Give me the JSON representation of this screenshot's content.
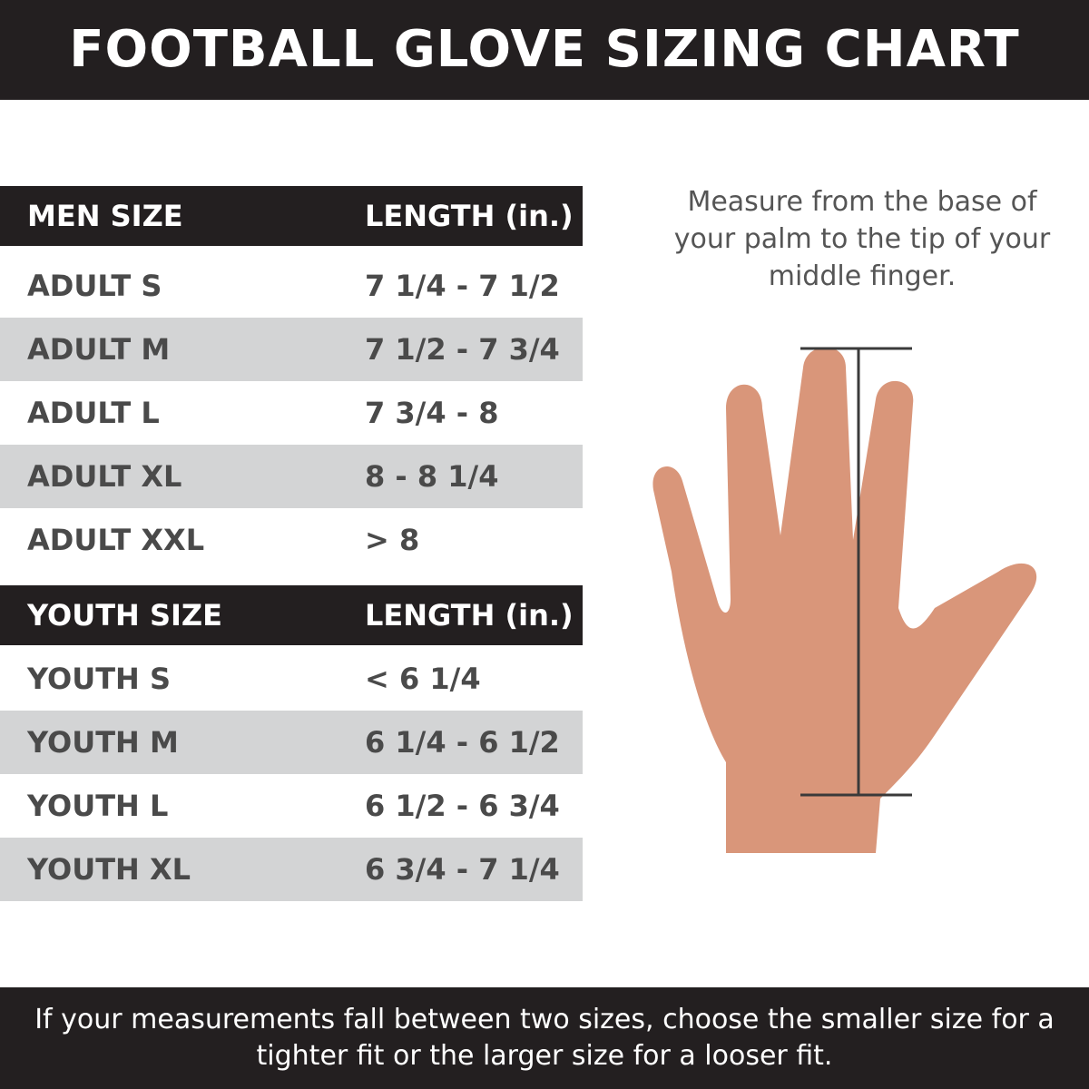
{
  "title": "FOOTBALL GLOVE SIZING CHART",
  "men": {
    "header": [
      "MEN SIZE",
      "LENGTH (in.)"
    ],
    "rows": [
      [
        "ADULT S",
        "7 1/4 - 7 1/2"
      ],
      [
        "ADULT M",
        "7 1/2 - 7 3/4"
      ],
      [
        "ADULT L",
        "7 3/4 - 8"
      ],
      [
        "ADULT XL",
        "8 - 8 1/4"
      ],
      [
        "ADULT XXL",
        "> 8"
      ]
    ]
  },
  "youth": {
    "header": [
      "YOUTH SIZE",
      "LENGTH (in.)"
    ],
    "rows": [
      [
        "YOUTH S",
        "< 6 1/4"
      ],
      [
        "YOUTH M",
        "6 1/4 - 6 1/2"
      ],
      [
        "YOUTH L",
        "6 1/2 - 6 3/4"
      ],
      [
        "YOUTH XL",
        "6 3/4 - 7 1/4"
      ]
    ]
  },
  "instruction": "Measure from the base of your palm to the tip of your middle finger.",
  "footer": "If your measurements fall between two sizes, choose the smaller size for a tighter fit or the larger size for a looser fit.",
  "colors": {
    "dark": "#231f20",
    "stripe": "#d3d4d5",
    "text": "#4a4a4a",
    "skin": "#d9967a"
  }
}
